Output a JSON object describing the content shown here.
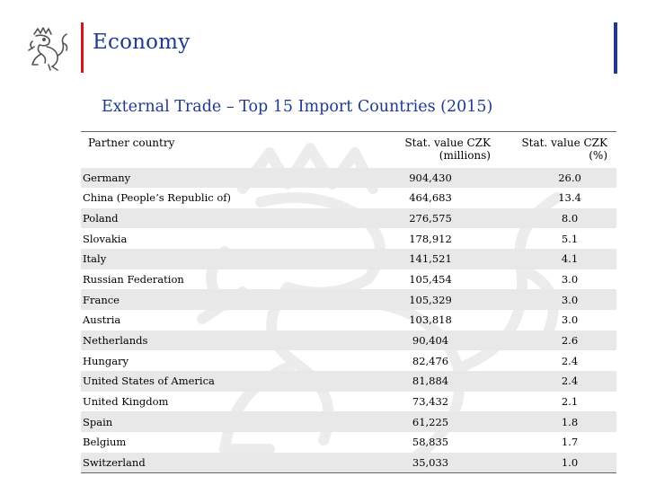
{
  "header": {
    "title": "Economy"
  },
  "subtitle": "External Trade – Top 15 Import Countries (2015)",
  "colors": {
    "accent_red": "#d7141a",
    "accent_blue": "#1f3a93",
    "row_shade": "#e8e8e8"
  },
  "table": {
    "headers": {
      "country": "Partner country",
      "value_line1": "Stat. value CZK",
      "value_line2": "(millions)",
      "pct_line1": "Stat. value CZK",
      "pct_line2": "(%)"
    },
    "rows": [
      {
        "country": "Germany",
        "value": "904,430",
        "pct": "26.0"
      },
      {
        "country": "China (People’s Republic of)",
        "value": "464,683",
        "pct": "13.4"
      },
      {
        "country": "Poland",
        "value": "276,575",
        "pct": "8.0"
      },
      {
        "country": "Slovakia",
        "value": "178,912",
        "pct": "5.1"
      },
      {
        "country": "Italy",
        "value": "141,521",
        "pct": "4.1"
      },
      {
        "country": "Russian Federation",
        "value": "105,454",
        "pct": "3.0"
      },
      {
        "country": "France",
        "value": "105,329",
        "pct": "3.0"
      },
      {
        "country": "Austria",
        "value": "103,818",
        "pct": "3.0"
      },
      {
        "country": "Netherlands",
        "value": "90,404",
        "pct": "2.6"
      },
      {
        "country": "Hungary",
        "value": "82,476",
        "pct": "2.4"
      },
      {
        "country": "United States of America",
        "value": "81,884",
        "pct": "2.4"
      },
      {
        "country": "United Kingdom",
        "value": "73,432",
        "pct": "2.1"
      },
      {
        "country": "Spain",
        "value": "61,225",
        "pct": "1.8"
      },
      {
        "country": "Belgium",
        "value": "58,835",
        "pct": "1.7"
      },
      {
        "country": "Switzerland",
        "value": "35,033",
        "pct": "1.0"
      }
    ]
  }
}
